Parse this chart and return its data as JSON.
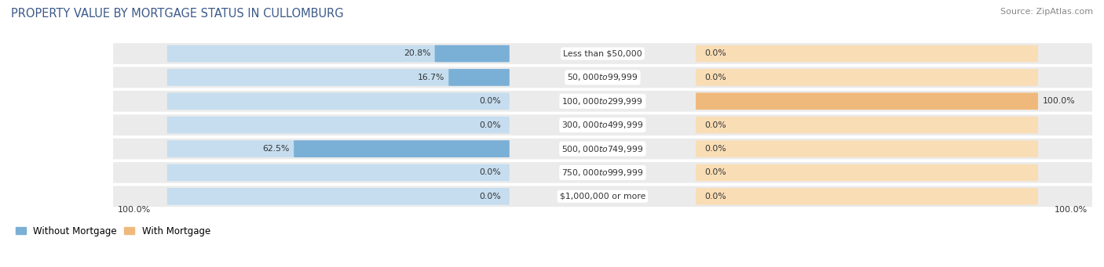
{
  "title": "PROPERTY VALUE BY MORTGAGE STATUS IN CULLOMBURG",
  "source": "Source: ZipAtlas.com",
  "categories": [
    "Less than $50,000",
    "$50,000 to $99,999",
    "$100,000 to $299,999",
    "$300,000 to $499,999",
    "$500,000 to $749,999",
    "$750,000 to $999,999",
    "$1,000,000 or more"
  ],
  "without_mortgage": [
    20.8,
    16.7,
    0.0,
    0.0,
    62.5,
    0.0,
    0.0
  ],
  "with_mortgage": [
    0.0,
    0.0,
    100.0,
    0.0,
    0.0,
    0.0,
    0.0
  ],
  "color_without": "#7aafd6",
  "color_with": "#f0b97c",
  "color_without_light": "#c5ddef",
  "color_with_light": "#f9ddb5",
  "row_bg": "#ebebeb",
  "title_color": "#3d5a8a",
  "source_color": "#888888",
  "text_color": "#333333"
}
